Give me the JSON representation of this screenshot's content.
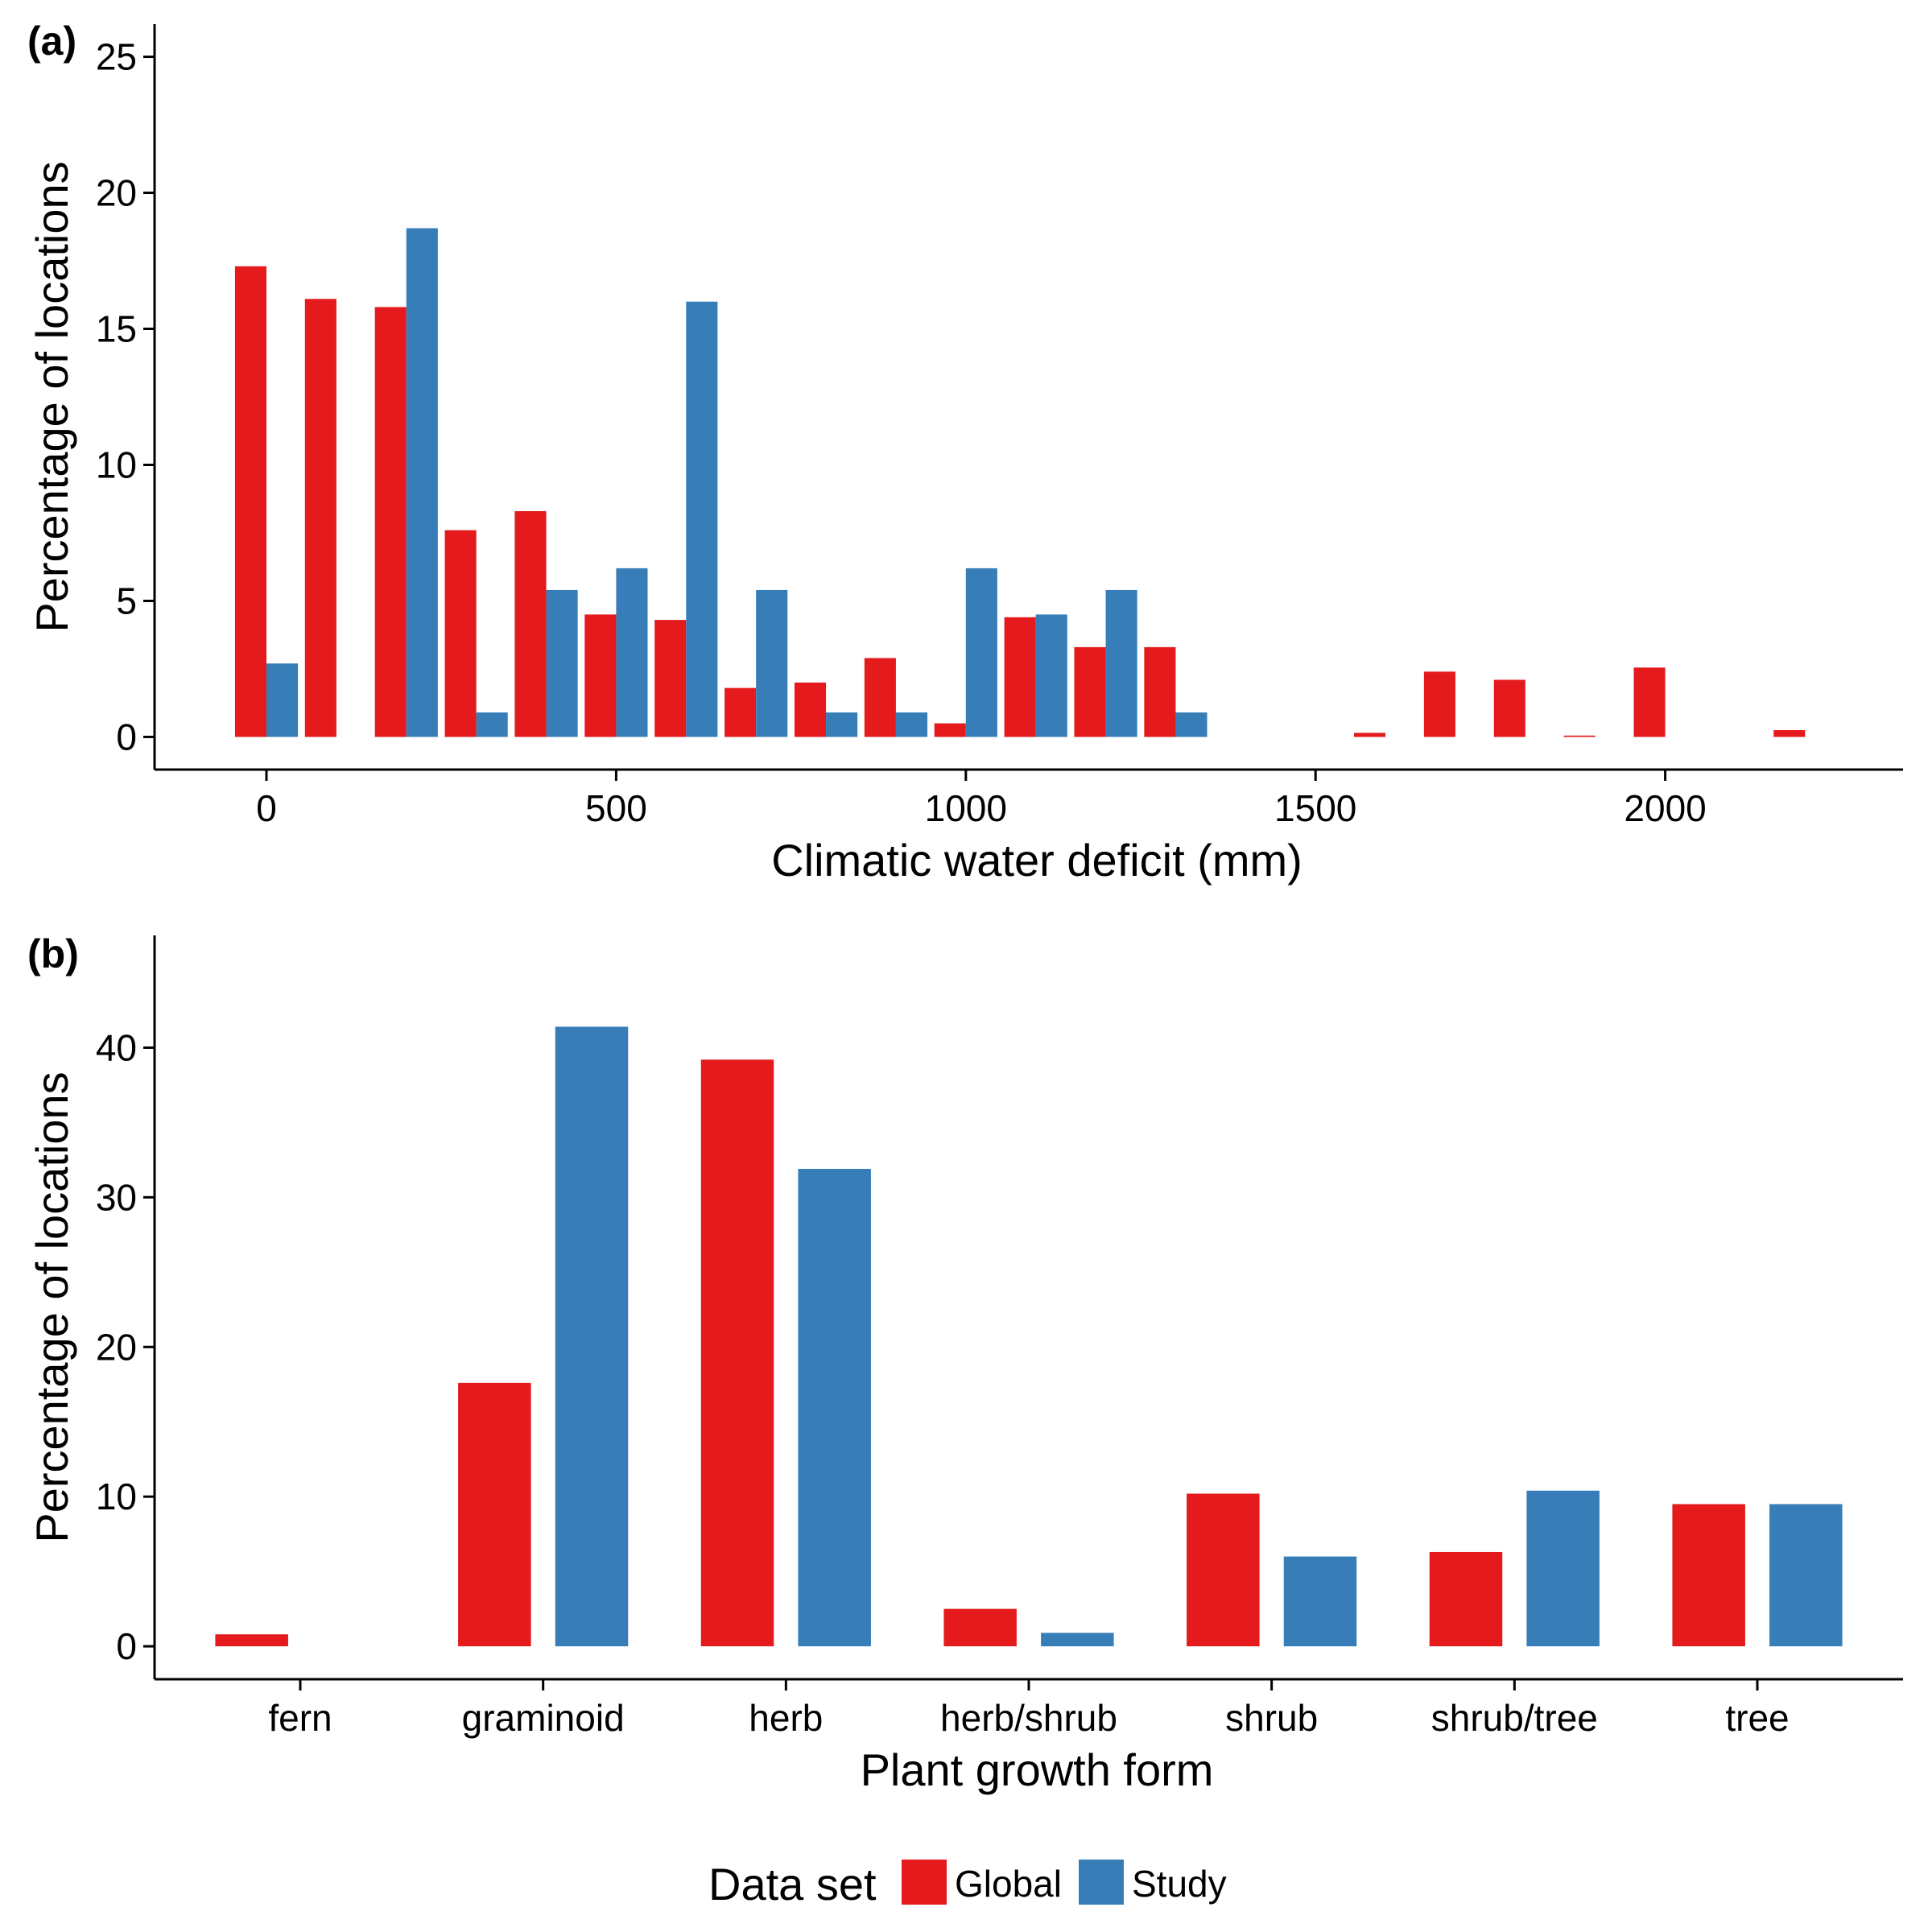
{
  "colors": {
    "global": "#E41A1C",
    "study": "#377EB8"
  },
  "panel_a": {
    "label": "(a)",
    "xlabel": "Climatic water deficit (mm)",
    "ylabel": "Percentage of locations"
  },
  "panel_b": {
    "label": "(b)",
    "xlabel": "Plant growth form",
    "ylabel": "Percentage of locations"
  },
  "legend": {
    "title": "Data set",
    "items": [
      {
        "label": "Global",
        "color": "#E41A1C"
      },
      {
        "label": "Study",
        "color": "#377EB8"
      }
    ]
  },
  "chart_data": [
    {
      "type": "bar",
      "panel": "(a)",
      "xlabel": "Climatic water deficit (mm)",
      "ylabel": "Percentage of locations",
      "xlim": [
        -160,
        2340
      ],
      "ylim": [
        -1.2,
        26.2
      ],
      "xticks": [
        0,
        500,
        1000,
        1500,
        2000
      ],
      "yticks": [
        0,
        5,
        10,
        15,
        20,
        25
      ],
      "bin_width": 100,
      "x": [
        0,
        100,
        200,
        300,
        400,
        500,
        600,
        700,
        800,
        900,
        1000,
        1100,
        1200,
        1300,
        1400,
        1500,
        1600,
        1700,
        1800,
        1900,
        2000,
        2100,
        2200
      ],
      "series": [
        {
          "name": "Global",
          "values": [
            17.3,
            16.1,
            15.8,
            7.6,
            8.3,
            4.5,
            4.3,
            1.8,
            2.0,
            2.9,
            0.5,
            4.4,
            3.3,
            3.3,
            0,
            0,
            0.15,
            2.4,
            2.1,
            0.05,
            2.55,
            0,
            0.25
          ]
        },
        {
          "name": "Study",
          "values": [
            2.7,
            0,
            18.7,
            0.9,
            5.4,
            6.2,
            16.0,
            5.4,
            0.9,
            0.9,
            6.2,
            4.5,
            5.4,
            0.9,
            0,
            0,
            0,
            0,
            0,
            0,
            0,
            0,
            0
          ]
        }
      ]
    },
    {
      "type": "bar",
      "panel": "(b)",
      "xlabel": "Plant growth form",
      "ylabel": "Percentage of locations",
      "ylim": [
        -2.2,
        47.5
      ],
      "yticks": [
        0,
        10,
        20,
        30,
        40
      ],
      "categories": [
        "fern",
        "graminoid",
        "herb",
        "herb/shrub",
        "shrub",
        "shrub/tree",
        "tree"
      ],
      "series": [
        {
          "name": "Global",
          "values": [
            0.8,
            17.6,
            39.2,
            2.5,
            10.2,
            6.3,
            9.5
          ]
        },
        {
          "name": "Study",
          "values": [
            0,
            41.4,
            31.9,
            0.9,
            6.0,
            10.4,
            9.5
          ]
        }
      ]
    }
  ]
}
